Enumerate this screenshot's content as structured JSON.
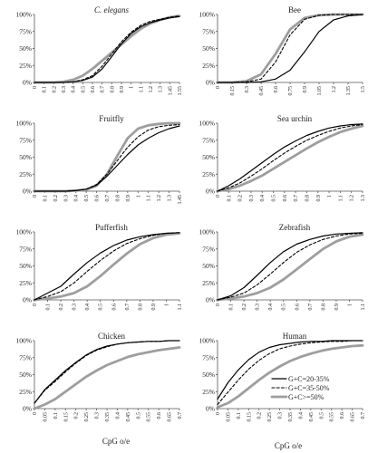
{
  "xlabel": "CpG o/e",
  "y_ticks": [
    "0%",
    "25%",
    "50%",
    "75%",
    "100%"
  ],
  "legend": {
    "placement": "bottom-right of Human panel",
    "entries": [
      "G+C=20-35%",
      "G+C=35-50%",
      "G+C>=50%"
    ]
  },
  "series_styles": [
    {
      "color": "#000000",
      "dash": "solid"
    },
    {
      "color": "#000000",
      "dash": "dashed"
    },
    {
      "color": "#9e9e9e",
      "dash": "solid-thick"
    }
  ],
  "chart_data": [
    {
      "type": "line",
      "title": "C. elegans",
      "title_italic": true,
      "x_ticks": [
        "0",
        "0.1",
        "0.2",
        "0.3",
        "0.4",
        "0.5",
        "0.6",
        "0.7",
        "0.8",
        "0.9",
        "1",
        "1.1",
        "1.2",
        "1.3",
        "1.45",
        "1.55"
      ],
      "ylim": [
        0,
        100
      ],
      "series": [
        {
          "values": [
            0,
            0,
            0,
            0,
            1,
            3,
            8,
            20,
            38,
            57,
            72,
            82,
            88,
            92,
            95,
            97
          ]
        },
        {
          "values": [
            0,
            0,
            0,
            0,
            1,
            4,
            10,
            24,
            42,
            60,
            74,
            84,
            90,
            93,
            96,
            98
          ]
        },
        {
          "values": [
            0,
            0,
            0,
            1,
            4,
            10,
            20,
            32,
            44,
            56,
            68,
            79,
            87,
            92,
            96,
            98
          ]
        }
      ]
    },
    {
      "type": "line",
      "title": "Bee",
      "x_ticks": [
        "0",
        "0.15",
        "0.3",
        "0.45",
        "0.6",
        "0.75",
        "0.9",
        "1.05",
        "1.2",
        "1.35",
        "1.5"
      ],
      "ylim": [
        0,
        100
      ],
      "series": [
        {
          "values": [
            0,
            0,
            0,
            1,
            5,
            18,
            45,
            75,
            92,
            98,
            100
          ]
        },
        {
          "values": [
            0,
            0,
            1,
            5,
            30,
            70,
            93,
            99,
            100,
            100,
            100
          ]
        },
        {
          "values": [
            0,
            0,
            2,
            12,
            42,
            78,
            95,
            99,
            100,
            100,
            100
          ]
        }
      ]
    },
    {
      "type": "line",
      "title": "Fruitfly",
      "x_ticks": [
        "0",
        "0.1",
        "0.2",
        "0.3",
        "0.4",
        "0.5",
        "0.6",
        "0.7",
        "0.8",
        "0.9",
        "1",
        "1.1",
        "1.2",
        "1.3",
        "1.45"
      ],
      "ylim": [
        0,
        100
      ],
      "series": [
        {
          "values": [
            0,
            0,
            0,
            0,
            1,
            3,
            9,
            22,
            38,
            54,
            68,
            78,
            86,
            92,
            96
          ]
        },
        {
          "values": [
            0,
            0,
            0,
            0,
            1,
            3,
            10,
            25,
            45,
            65,
            80,
            90,
            95,
            97,
            98
          ]
        },
        {
          "values": [
            0,
            0,
            0,
            0,
            1,
            2,
            8,
            25,
            52,
            78,
            92,
            97,
            99,
            100,
            100
          ]
        }
      ]
    },
    {
      "type": "line",
      "title": "Sea urchin",
      "x_ticks": [
        "0",
        "0.1",
        "0.2",
        "0.3",
        "0.4",
        "0.5",
        "0.6",
        "0.7",
        "0.8",
        "0.9",
        "1",
        "1.1",
        "1.2",
        "1.3"
      ],
      "ylim": [
        0,
        100
      ],
      "series": [
        {
          "values": [
            0,
            8,
            18,
            30,
            42,
            54,
            65,
            74,
            82,
            88,
            93,
            96,
            98,
            99
          ]
        },
        {
          "values": [
            0,
            5,
            12,
            22,
            33,
            45,
            56,
            66,
            75,
            82,
            88,
            93,
            96,
            98
          ]
        },
        {
          "values": [
            0,
            3,
            8,
            15,
            23,
            33,
            43,
            53,
            63,
            72,
            80,
            87,
            92,
            96
          ]
        }
      ]
    },
    {
      "type": "line",
      "title": "Pufferfish",
      "x_ticks": [
        "0",
        "0.1",
        "0.2",
        "0.3",
        "0.4",
        "0.5",
        "0.6",
        "0.7",
        "0.8",
        "0.9",
        "1",
        "1.1"
      ],
      "ylim": [
        0,
        100
      ],
      "series": [
        {
          "values": [
            0,
            10,
            20,
            38,
            55,
            69,
            80,
            88,
            93,
            96,
            98,
            99
          ]
        },
        {
          "values": [
            0,
            5,
            12,
            25,
            42,
            58,
            72,
            83,
            90,
            95,
            98,
            99
          ]
        },
        {
          "values": [
            0,
            2,
            5,
            10,
            20,
            35,
            52,
            68,
            82,
            91,
            96,
            98
          ]
        }
      ]
    },
    {
      "type": "line",
      "title": "Zebrafish",
      "x_ticks": [
        "0",
        "0.1",
        "0.2",
        "0.3",
        "0.4",
        "0.5",
        "0.6",
        "0.7",
        "0.8",
        "0.9",
        "1",
        "1.1"
      ],
      "ylim": [
        0,
        100
      ],
      "series": [
        {
          "values": [
            0,
            6,
            18,
            36,
            55,
            71,
            82,
            89,
            94,
            97,
            98,
            99
          ]
        },
        {
          "values": [
            0,
            4,
            10,
            22,
            38,
            55,
            70,
            81,
            89,
            94,
            97,
            98
          ]
        },
        {
          "values": [
            0,
            2,
            5,
            10,
            18,
            30,
            45,
            60,
            75,
            86,
            93,
            96
          ]
        }
      ]
    },
    {
      "type": "line",
      "title": "Chicken",
      "x_ticks": [
        "0",
        "0.05",
        "0.1",
        "0.15",
        "0.2",
        "0.25",
        "0.3",
        "0.35",
        "0.4",
        "0.45",
        "0.5",
        "0.55",
        "0.6",
        "0.65",
        "0.7"
      ],
      "ylim": [
        0,
        100
      ],
      "series": [
        {
          "values": [
            8,
            28,
            42,
            56,
            68,
            79,
            87,
            92,
            95,
            97,
            98,
            99,
            99,
            100,
            100
          ]
        },
        {
          "values": [
            8,
            27,
            40,
            54,
            67,
            78,
            86,
            91,
            95,
            97,
            98,
            99,
            99,
            100,
            100
          ]
        },
        {
          "values": [
            0,
            6,
            14,
            25,
            36,
            47,
            56,
            64,
            70,
            76,
            80,
            83,
            86,
            88,
            90
          ]
        }
      ]
    },
    {
      "type": "line",
      "title": "Human",
      "x_ticks": [
        "0",
        "0.05",
        "0.1",
        "0.15",
        "0.2",
        "0.25",
        "0.3",
        "0.35",
        "0.4",
        "0.45",
        "0.5",
        "0.55",
        "0.6",
        "0.65",
        "0.7"
      ],
      "ylim": [
        0,
        100
      ],
      "series": [
        {
          "values": [
            14,
            38,
            57,
            72,
            83,
            90,
            94,
            96,
            98,
            99,
            99,
            100,
            100,
            100,
            100
          ]
        },
        {
          "values": [
            6,
            24,
            42,
            58,
            71,
            81,
            88,
            92,
            95,
            97,
            98,
            99,
            99,
            100,
            100
          ]
        },
        {
          "values": [
            2,
            8,
            18,
            30,
            42,
            53,
            62,
            70,
            76,
            81,
            85,
            88,
            90,
            92,
            93
          ]
        }
      ]
    }
  ]
}
